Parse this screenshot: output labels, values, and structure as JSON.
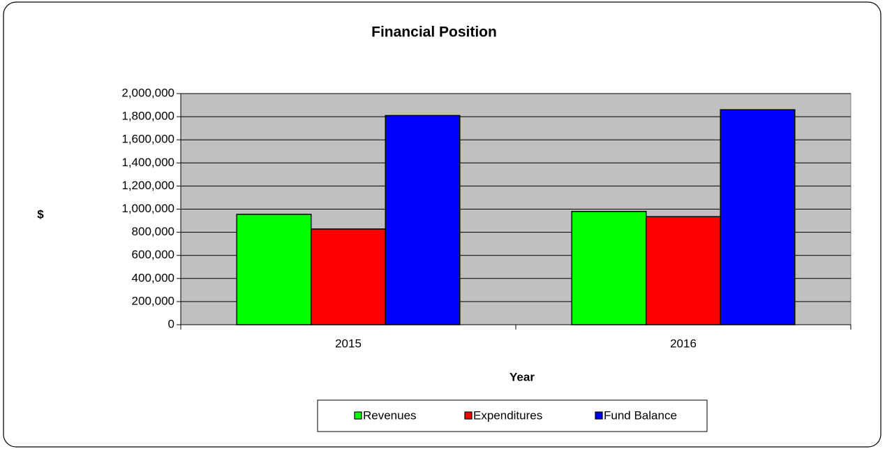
{
  "chart_data": {
    "type": "bar",
    "title": "Financial Position",
    "x_label": "Year",
    "y_label": "$",
    "categories": [
      "2015",
      "2016"
    ],
    "series": [
      {
        "name": "Revenues",
        "color": "#00ff00",
        "values": [
          955000,
          980000
        ]
      },
      {
        "name": "Expenditures",
        "color": "#ff0000",
        "values": [
          828000,
          935000
        ]
      },
      {
        "name": "Fund Balance",
        "color": "#0000ff",
        "values": [
          1810000,
          1860000
        ]
      }
    ],
    "ylim": [
      0,
      2000000
    ],
    "yticks": [
      0,
      {
        "value": 200000,
        "label": "200,000"
      },
      {
        "value": 400000,
        "label": "400,000"
      },
      {
        "value": 600000,
        "label": "600,000"
      },
      {
        "value": 800000,
        "label": "800,000"
      },
      {
        "value": 1000000,
        "label": "1,000,000"
      },
      {
        "value": 1200000,
        "label": "1,200,000"
      },
      {
        "value": 1400000,
        "label": "1,400,000"
      },
      {
        "value": 1600000,
        "label": "1,600,000"
      },
      {
        "value": 1800000,
        "label": "1,800,000"
      },
      {
        "value": 2000000,
        "label": "2,000,000"
      }
    ],
    "grid": true,
    "plot_background": "#c0c0c0",
    "legend": "bottom"
  }
}
